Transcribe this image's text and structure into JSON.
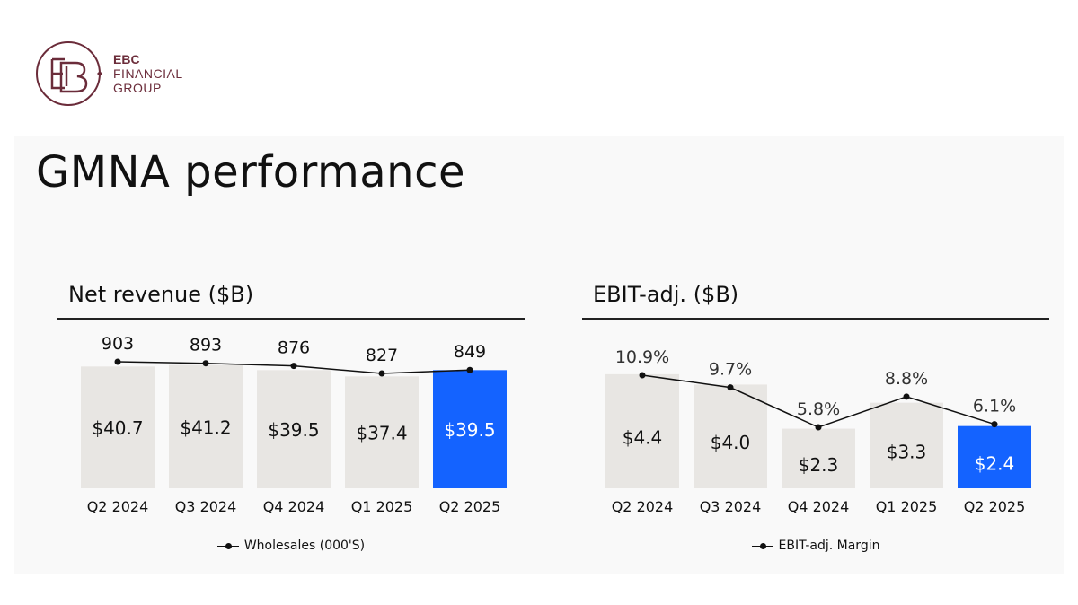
{
  "brand": {
    "line1": "EBC",
    "line2": "FINANCIAL",
    "line3": "GROUP",
    "monogram": "EBC",
    "color": "#6b2c3a"
  },
  "title": "GMNA performance",
  "colors": {
    "bar": "#e8e6e3",
    "highlight": "#1463ff",
    "line": "#111111"
  },
  "chart_data": [
    {
      "type": "bar",
      "title": "Net revenue ($B)",
      "categories": [
        "Q2 2024",
        "Q3 2024",
        "Q4 2024",
        "Q1 2025",
        "Q2 2025"
      ],
      "values": [
        40.7,
        41.2,
        39.5,
        37.4,
        39.5
      ],
      "value_labels": [
        "$40.7",
        "$41.2",
        "$39.5",
        "$37.4",
        "$39.5"
      ],
      "highlight_index": 4,
      "ylim": [
        0,
        42
      ],
      "line_series": {
        "name": "Wholesales (000'S)",
        "values": [
          903,
          893,
          876,
          827,
          849
        ],
        "labels": [
          "903",
          "893",
          "876",
          "827",
          "849"
        ]
      }
    },
    {
      "type": "bar",
      "title": "EBIT-adj. ($B)",
      "categories": [
        "Q2 2024",
        "Q3 2024",
        "Q4 2024",
        "Q1 2025",
        "Q2 2025"
      ],
      "values": [
        4.4,
        4.0,
        2.3,
        3.3,
        2.4
      ],
      "value_labels": [
        "$4.4",
        "$4.0",
        "$2.3",
        "$3.3",
        "$2.4"
      ],
      "highlight_index": 4,
      "ylim": [
        0,
        4.5
      ],
      "line_series": {
        "name": "EBIT-adj. Margin",
        "values": [
          10.9,
          9.7,
          5.8,
          8.8,
          6.1
        ],
        "labels": [
          "10.9%",
          "9.7%",
          "5.8%",
          "8.8%",
          "6.1%"
        ]
      }
    }
  ]
}
